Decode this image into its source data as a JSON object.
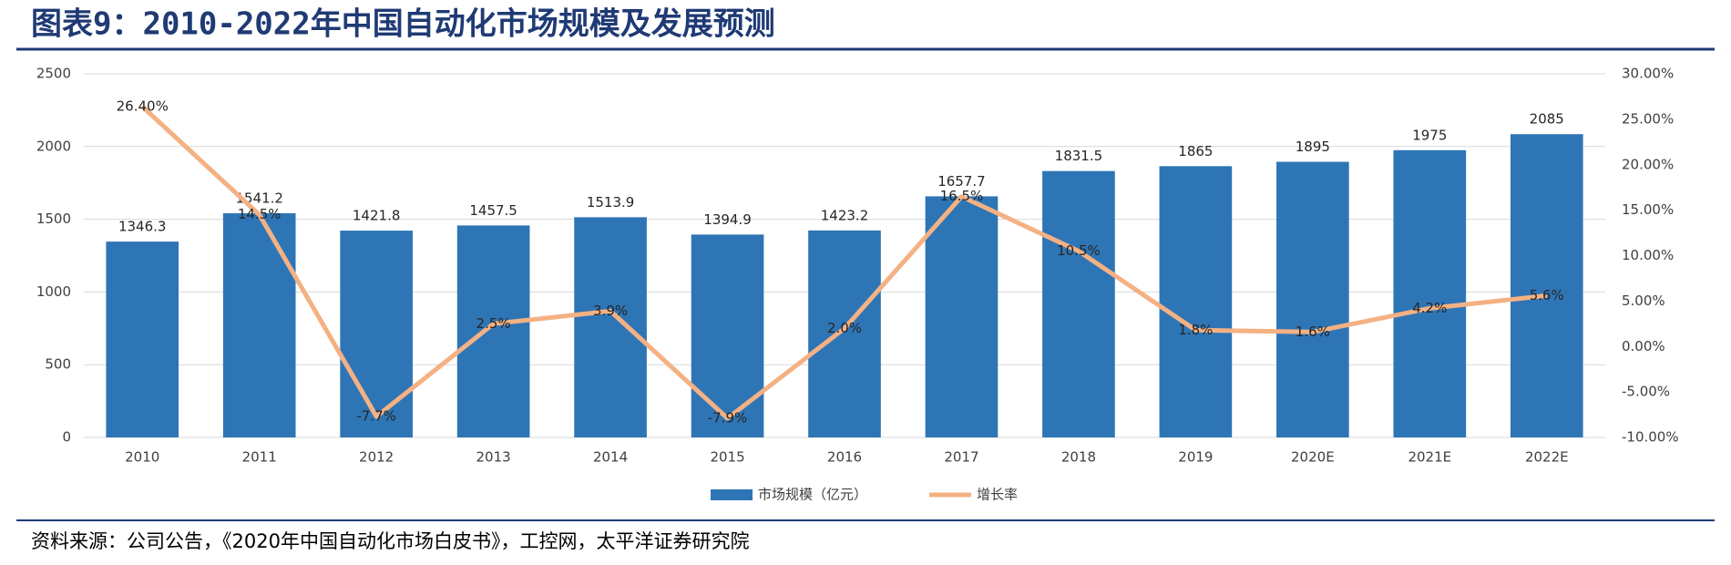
{
  "chart_data": {
    "type": "bar",
    "title": "图表9：2010-2022年中国自动化市场规模及发展预测",
    "source": "资料来源：公司公告，《2020年中国自动化市场白皮书》，工控网，太平洋证券研究院",
    "categories": [
      "2010",
      "2011",
      "2012",
      "2013",
      "2014",
      "2015",
      "2016",
      "2017",
      "2018",
      "2019",
      "2020E",
      "2021E",
      "2022E"
    ],
    "series": [
      {
        "name": "市场规模（亿元）",
        "type": "bar",
        "color": "#2e75b6",
        "values": [
          1346.3,
          1541.2,
          1421.8,
          1457.5,
          1513.9,
          1394.9,
          1423.2,
          1657.7,
          1831.5,
          1865,
          1895,
          1975,
          2085
        ]
      },
      {
        "name": "增长率",
        "type": "line",
        "axis": "y2",
        "color": "#f4b183",
        "values": [
          26.4,
          14.5,
          -7.7,
          2.5,
          3.9,
          -7.9,
          2.0,
          16.5,
          10.5,
          1.8,
          1.6,
          4.2,
          5.6
        ],
        "value_labels": [
          "26.40%",
          "14.5%",
          "-7.7%",
          "2.5%",
          "3.9%",
          "-7.9%",
          "2.0%",
          "16.5%",
          "10.5%",
          "1.8%",
          "1.6%",
          "4.2%",
          "5.6%"
        ]
      }
    ],
    "ylim": [
      0,
      2500
    ],
    "yticks": [
      0,
      500,
      1000,
      1500,
      2000,
      2500
    ],
    "y2lim": [
      -10,
      30
    ],
    "y2ticks": [
      {
        "value": -10,
        "label": "-10.00%"
      },
      {
        "value": -5,
        "label": "-5.00%"
      },
      {
        "value": 0,
        "label": "0.00%"
      },
      {
        "value": 5,
        "label": "5.00%"
      },
      {
        "value": 10,
        "label": "10.00%"
      },
      {
        "value": 15,
        "label": "15.00%"
      },
      {
        "value": 20,
        "label": "20.00%"
      },
      {
        "value": 25,
        "label": "25.00%"
      },
      {
        "value": 30,
        "label": "30.00%"
      }
    ],
    "grid": true,
    "legend": "bottom"
  }
}
